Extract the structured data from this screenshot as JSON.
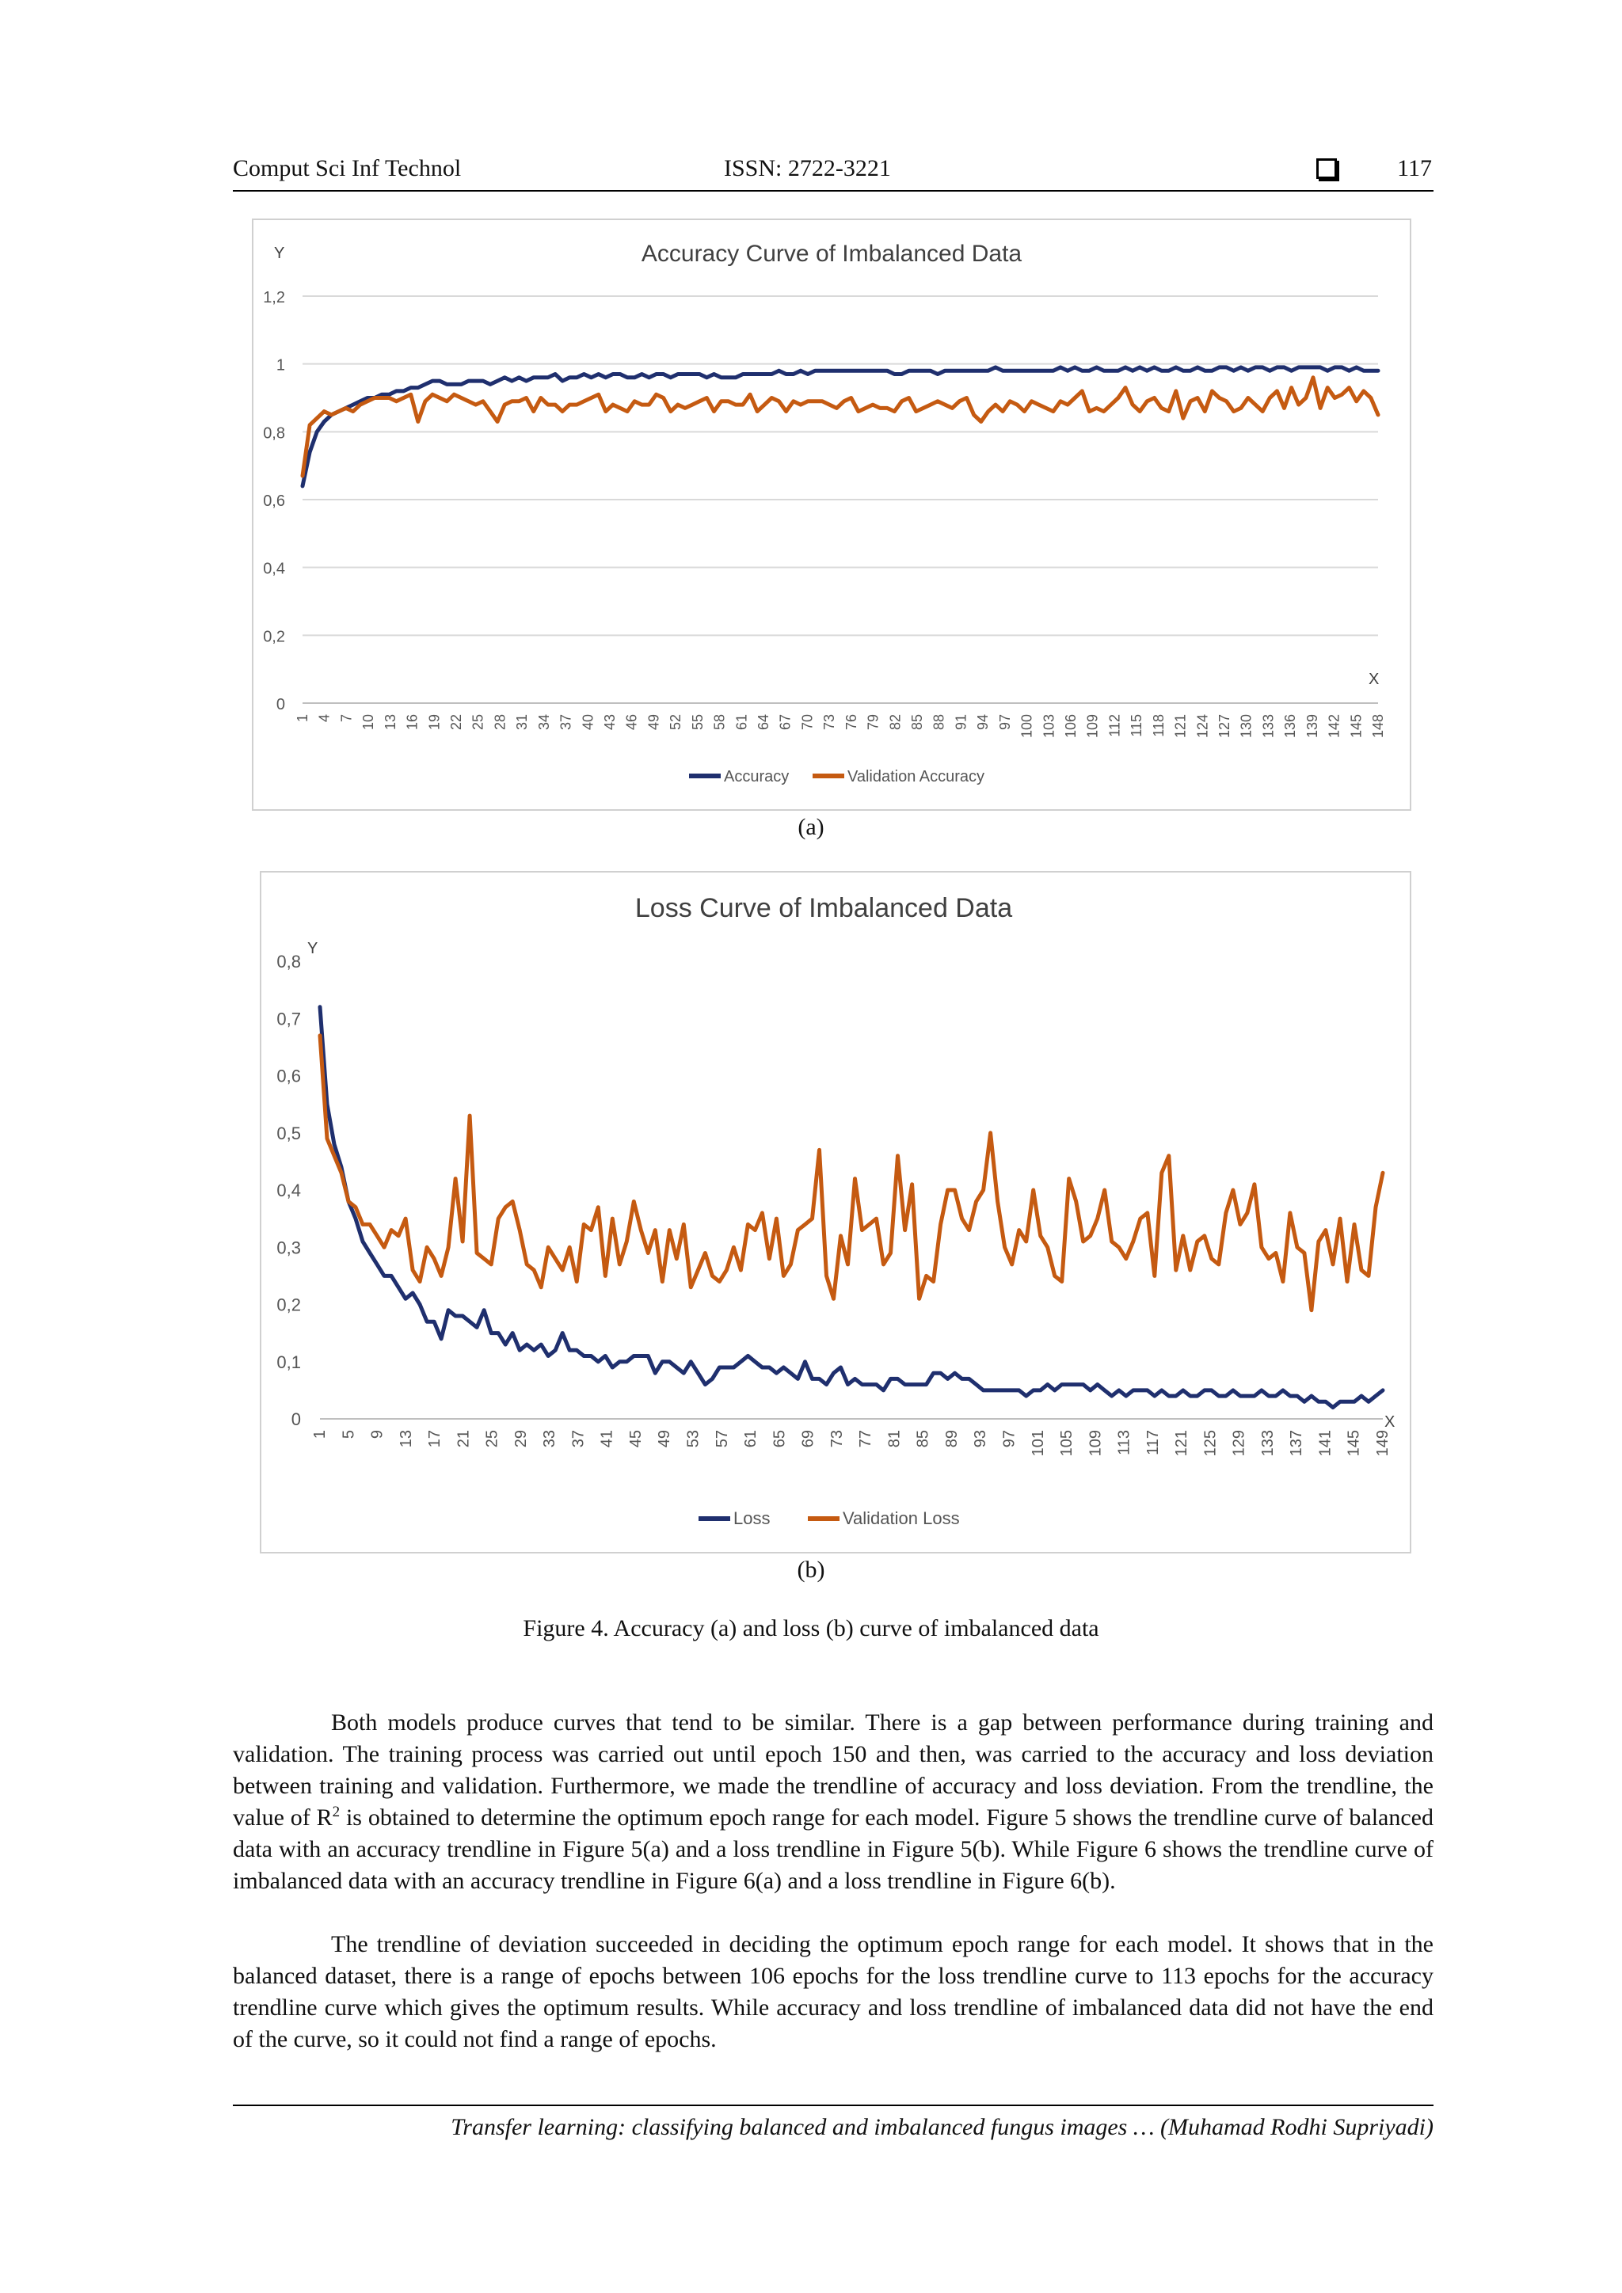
{
  "header": {
    "journal": "Comput Sci Inf Technol",
    "issn": "ISSN: 2722-3221",
    "page_number": "117"
  },
  "figure": {
    "sublabel_a": "(a)",
    "sublabel_b": "(b)",
    "caption": "Figure 4. Accuracy (a) and loss (b) curve of imbalanced data"
  },
  "chart_data": [
    {
      "type": "line",
      "title": "Accuracy Curve of Imbalanced Data",
      "xlabel": "X",
      "ylabel": "Y",
      "ylim": [
        0,
        1.2
      ],
      "yticks": [
        0,
        0.2,
        0.4,
        0.6,
        0.8,
        1,
        1.2
      ],
      "ytick_labels": [
        "0",
        "0,2",
        "0,4",
        "0,6",
        "0,8",
        "1",
        "1,2"
      ],
      "xlim": [
        1,
        150
      ],
      "xtick_labels": [
        "1",
        "4",
        "7",
        "10",
        "13",
        "16",
        "19",
        "22",
        "25",
        "28",
        "31",
        "34",
        "37",
        "40",
        "43",
        "46",
        "49",
        "52",
        "55",
        "58",
        "61",
        "64",
        "67",
        "70",
        "73",
        "76",
        "79",
        "82",
        "85",
        "88",
        "91",
        "94",
        "97",
        "100",
        "103",
        "106",
        "109",
        "112",
        "115",
        "118",
        "121",
        "124",
        "127",
        "130",
        "133",
        "136",
        "139",
        "142",
        "145",
        "148"
      ],
      "grid": true,
      "legend_position": "bottom",
      "series": [
        {
          "name": "Accuracy",
          "color": "#1f2f6e",
          "values": [
            0.64,
            0.74,
            0.8,
            0.83,
            0.85,
            0.86,
            0.87,
            0.88,
            0.89,
            0.9,
            0.9,
            0.91,
            0.91,
            0.92,
            0.92,
            0.93,
            0.93,
            0.94,
            0.95,
            0.95,
            0.94,
            0.94,
            0.94,
            0.95,
            0.95,
            0.95,
            0.94,
            0.95,
            0.96,
            0.95,
            0.96,
            0.95,
            0.96,
            0.96,
            0.96,
            0.97,
            0.95,
            0.96,
            0.96,
            0.97,
            0.96,
            0.97,
            0.96,
            0.97,
            0.97,
            0.96,
            0.96,
            0.97,
            0.96,
            0.97,
            0.97,
            0.96,
            0.97,
            0.97,
            0.97,
            0.97,
            0.96,
            0.97,
            0.96,
            0.96,
            0.96,
            0.97,
            0.97,
            0.97,
            0.97,
            0.97,
            0.98,
            0.97,
            0.97,
            0.98,
            0.97,
            0.98,
            0.98,
            0.98,
            0.98,
            0.98,
            0.98,
            0.98,
            0.98,
            0.98,
            0.98,
            0.98,
            0.97,
            0.97,
            0.98,
            0.98,
            0.98,
            0.98,
            0.97,
            0.98,
            0.98,
            0.98,
            0.98,
            0.98,
            0.98,
            0.98,
            0.99,
            0.98,
            0.98,
            0.98,
            0.98,
            0.98,
            0.98,
            0.98,
            0.98,
            0.99,
            0.98,
            0.99,
            0.98,
            0.98,
            0.99,
            0.98,
            0.98,
            0.98,
            0.99,
            0.98,
            0.99,
            0.98,
            0.99,
            0.98,
            0.98,
            0.99,
            0.98,
            0.98,
            0.99,
            0.98,
            0.98,
            0.99,
            0.99,
            0.98,
            0.99,
            0.98,
            0.99,
            0.99,
            0.98,
            0.99,
            0.99,
            0.98,
            0.99,
            0.99,
            0.99,
            0.99,
            0.98,
            0.99,
            0.99,
            0.98,
            0.99,
            0.98,
            0.98,
            0.98
          ]
        },
        {
          "name": "Validation Accuracy",
          "color": "#c55a11",
          "values": [
            0.67,
            0.82,
            0.84,
            0.86,
            0.85,
            0.86,
            0.87,
            0.86,
            0.88,
            0.89,
            0.9,
            0.9,
            0.9,
            0.89,
            0.9,
            0.91,
            0.83,
            0.89,
            0.91,
            0.9,
            0.89,
            0.91,
            0.9,
            0.89,
            0.88,
            0.89,
            0.86,
            0.83,
            0.88,
            0.89,
            0.89,
            0.9,
            0.86,
            0.9,
            0.88,
            0.88,
            0.86,
            0.88,
            0.88,
            0.89,
            0.9,
            0.91,
            0.86,
            0.88,
            0.87,
            0.86,
            0.89,
            0.88,
            0.88,
            0.91,
            0.9,
            0.86,
            0.88,
            0.87,
            0.88,
            0.89,
            0.9,
            0.86,
            0.89,
            0.89,
            0.88,
            0.88,
            0.91,
            0.86,
            0.88,
            0.9,
            0.89,
            0.86,
            0.89,
            0.88,
            0.89,
            0.89,
            0.89,
            0.88,
            0.87,
            0.89,
            0.9,
            0.86,
            0.87,
            0.88,
            0.87,
            0.87,
            0.86,
            0.89,
            0.9,
            0.86,
            0.87,
            0.88,
            0.89,
            0.88,
            0.87,
            0.89,
            0.9,
            0.85,
            0.83,
            0.86,
            0.88,
            0.86,
            0.89,
            0.88,
            0.86,
            0.89,
            0.88,
            0.87,
            0.86,
            0.89,
            0.88,
            0.9,
            0.92,
            0.86,
            0.87,
            0.86,
            0.88,
            0.9,
            0.93,
            0.88,
            0.86,
            0.89,
            0.9,
            0.87,
            0.86,
            0.92,
            0.84,
            0.89,
            0.9,
            0.86,
            0.92,
            0.9,
            0.89,
            0.86,
            0.87,
            0.9,
            0.88,
            0.86,
            0.9,
            0.92,
            0.87,
            0.93,
            0.88,
            0.9,
            0.96,
            0.87,
            0.93,
            0.9,
            0.91,
            0.93,
            0.89,
            0.92,
            0.9,
            0.85
          ]
        }
      ]
    },
    {
      "type": "line",
      "title": "Loss Curve of Imbalanced Data",
      "xlabel": "X",
      "ylabel": "Y",
      "ylim": [
        0,
        0.8
      ],
      "yticks": [
        0,
        0.1,
        0.2,
        0.3,
        0.4,
        0.5,
        0.6,
        0.7,
        0.8
      ],
      "ytick_labels": [
        "0",
        "0,1",
        "0,2",
        "0,3",
        "0,4",
        "0,5",
        "0,6",
        "0,7",
        "0,8"
      ],
      "xlim": [
        1,
        150
      ],
      "xtick_labels": [
        "1",
        "5",
        "9",
        "13",
        "17",
        "21",
        "25",
        "29",
        "33",
        "37",
        "41",
        "45",
        "49",
        "53",
        "57",
        "61",
        "65",
        "69",
        "73",
        "77",
        "81",
        "85",
        "89",
        "93",
        "97",
        "101",
        "105",
        "109",
        "113",
        "117",
        "121",
        "125",
        "129",
        "133",
        "137",
        "141",
        "145",
        "149"
      ],
      "grid": false,
      "legend_position": "bottom",
      "series": [
        {
          "name": "Loss",
          "color": "#1f2f6e",
          "values": [
            0.72,
            0.55,
            0.48,
            0.44,
            0.38,
            0.35,
            0.31,
            0.29,
            0.27,
            0.25,
            0.25,
            0.23,
            0.21,
            0.22,
            0.2,
            0.17,
            0.17,
            0.14,
            0.19,
            0.18,
            0.18,
            0.17,
            0.16,
            0.19,
            0.15,
            0.15,
            0.13,
            0.15,
            0.12,
            0.13,
            0.12,
            0.13,
            0.11,
            0.12,
            0.15,
            0.12,
            0.12,
            0.11,
            0.11,
            0.1,
            0.11,
            0.09,
            0.1,
            0.1,
            0.11,
            0.11,
            0.11,
            0.08,
            0.1,
            0.1,
            0.09,
            0.08,
            0.1,
            0.08,
            0.06,
            0.07,
            0.09,
            0.09,
            0.09,
            0.1,
            0.11,
            0.1,
            0.09,
            0.09,
            0.08,
            0.09,
            0.08,
            0.07,
            0.1,
            0.07,
            0.07,
            0.06,
            0.08,
            0.09,
            0.06,
            0.07,
            0.06,
            0.06,
            0.06,
            0.05,
            0.07,
            0.07,
            0.06,
            0.06,
            0.06,
            0.06,
            0.08,
            0.08,
            0.07,
            0.08,
            0.07,
            0.07,
            0.06,
            0.05,
            0.05,
            0.05,
            0.05,
            0.05,
            0.05,
            0.04,
            0.05,
            0.05,
            0.06,
            0.05,
            0.06,
            0.06,
            0.06,
            0.06,
            0.05,
            0.06,
            0.05,
            0.04,
            0.05,
            0.04,
            0.05,
            0.05,
            0.05,
            0.04,
            0.05,
            0.04,
            0.04,
            0.05,
            0.04,
            0.04,
            0.05,
            0.05,
            0.04,
            0.04,
            0.05,
            0.04,
            0.04,
            0.04,
            0.05,
            0.04,
            0.04,
            0.05,
            0.04,
            0.04,
            0.03,
            0.04,
            0.03,
            0.03,
            0.02,
            0.03,
            0.03,
            0.03,
            0.04,
            0.03,
            0.04,
            0.05
          ]
        },
        {
          "name": "Validation Loss",
          "color": "#c55a11",
          "values": [
            0.67,
            0.49,
            0.46,
            0.43,
            0.38,
            0.37,
            0.34,
            0.34,
            0.32,
            0.3,
            0.33,
            0.32,
            0.35,
            0.26,
            0.24,
            0.3,
            0.28,
            0.25,
            0.3,
            0.42,
            0.31,
            0.53,
            0.29,
            0.28,
            0.27,
            0.35,
            0.37,
            0.38,
            0.33,
            0.27,
            0.26,
            0.23,
            0.3,
            0.28,
            0.26,
            0.3,
            0.24,
            0.34,
            0.33,
            0.37,
            0.25,
            0.35,
            0.27,
            0.31,
            0.38,
            0.33,
            0.29,
            0.33,
            0.24,
            0.33,
            0.28,
            0.34,
            0.23,
            0.26,
            0.29,
            0.25,
            0.24,
            0.26,
            0.3,
            0.26,
            0.34,
            0.33,
            0.36,
            0.28,
            0.35,
            0.25,
            0.27,
            0.33,
            0.34,
            0.35,
            0.47,
            0.25,
            0.21,
            0.32,
            0.27,
            0.42,
            0.33,
            0.34,
            0.35,
            0.27,
            0.29,
            0.46,
            0.33,
            0.41,
            0.21,
            0.25,
            0.24,
            0.34,
            0.4,
            0.4,
            0.35,
            0.33,
            0.38,
            0.4,
            0.5,
            0.38,
            0.3,
            0.27,
            0.33,
            0.31,
            0.4,
            0.32,
            0.3,
            0.25,
            0.24,
            0.42,
            0.38,
            0.31,
            0.32,
            0.35,
            0.4,
            0.31,
            0.3,
            0.28,
            0.31,
            0.35,
            0.36,
            0.25,
            0.43,
            0.46,
            0.26,
            0.32,
            0.26,
            0.31,
            0.32,
            0.28,
            0.27,
            0.36,
            0.4,
            0.34,
            0.36,
            0.41,
            0.3,
            0.28,
            0.29,
            0.24,
            0.36,
            0.3,
            0.29,
            0.19,
            0.31,
            0.33,
            0.27,
            0.35,
            0.24,
            0.34,
            0.26,
            0.25,
            0.37,
            0.43
          ]
        }
      ]
    }
  ],
  "body": {
    "p1_part1": "Both models produce curves that tend to be similar. There is a gap between performance during training and validation. The training process was carried out until epoch 150 and then, was carried to the accuracy and loss deviation between training and validation. Furthermore, we made the trendline of accuracy and loss deviation. From the trendline, the value of R",
    "p1_sup": "2",
    "p1_part2": " is obtained to determine the optimum epoch range for each model. Figure 5 shows the trendline curve of balanced data with an accuracy trendline in Figure 5(a) and a loss trendline in Figure 5(b). While Figure 6 shows the trendline curve of imbalanced data with an accuracy trendline in Figure 6(a) and a loss trendline in Figure 6(b).",
    "p2": "The trendline of deviation succeeded in deciding the optimum epoch range for each model. It shows that in the balanced dataset, there is a range of epochs between 106 epochs for the loss trendline curve to 113 epochs for the accuracy trendline curve which gives the optimum results. While accuracy and loss trendline of imbalanced data did not have the end of the curve, so it could not find a range of epochs."
  },
  "footer": {
    "text": "Transfer learning: classifying balanced and imbalanced fungus images … (Muhamad Rodhi Supriyadi)"
  }
}
